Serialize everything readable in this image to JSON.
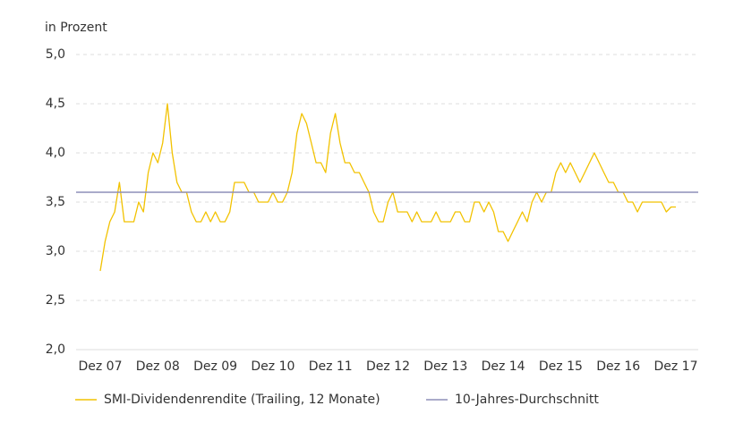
{
  "chart_data": {
    "type": "line",
    "y_axis_label": "in Prozent",
    "categories": [
      "Dez 07",
      null,
      null,
      null,
      null,
      null,
      null,
      null,
      null,
      null,
      null,
      null,
      "Dez 08",
      null,
      null,
      null,
      null,
      null,
      null,
      null,
      null,
      null,
      null,
      null,
      "Dez 09",
      null,
      null,
      null,
      null,
      null,
      null,
      null,
      null,
      null,
      null,
      null,
      "Dez 10",
      null,
      null,
      null,
      null,
      null,
      null,
      null,
      null,
      null,
      null,
      null,
      "Dez 11",
      null,
      null,
      null,
      null,
      null,
      null,
      null,
      null,
      null,
      null,
      null,
      "Dez 12",
      null,
      null,
      null,
      null,
      null,
      null,
      null,
      null,
      null,
      null,
      null,
      "Dez 13",
      null,
      null,
      null,
      null,
      null,
      null,
      null,
      null,
      null,
      null,
      null,
      "Dez 14",
      null,
      null,
      null,
      null,
      null,
      null,
      null,
      null,
      null,
      null,
      null,
      "Dez 15",
      null,
      null,
      null,
      null,
      null,
      null,
      null,
      null,
      null,
      null,
      null,
      "Dez 16",
      null,
      null,
      null,
      null,
      null,
      null,
      null,
      null,
      null,
      null,
      null,
      "Dez 17"
    ],
    "series": [
      {
        "name": "SMI-Dividendenrendite (Trailing, 12 Monate)",
        "color": "#f2c200",
        "values": [
          2.8,
          3.1,
          3.3,
          3.4,
          3.7,
          3.3,
          3.3,
          3.3,
          3.5,
          3.4,
          3.8,
          4.0,
          3.9,
          4.1,
          4.5,
          4.0,
          3.7,
          3.6,
          3.6,
          3.4,
          3.3,
          3.3,
          3.4,
          3.3,
          3.4,
          3.3,
          3.3,
          3.4,
          3.7,
          3.7,
          3.7,
          3.6,
          3.6,
          3.5,
          3.5,
          3.5,
          3.6,
          3.5,
          3.5,
          3.6,
          3.8,
          4.2,
          4.4,
          4.3,
          4.1,
          3.9,
          3.9,
          3.8,
          4.2,
          4.4,
          4.1,
          3.9,
          3.9,
          3.8,
          3.8,
          3.7,
          3.6,
          3.4,
          3.3,
          3.3,
          3.5,
          3.6,
          3.4,
          3.4,
          3.4,
          3.3,
          3.4,
          3.3,
          3.3,
          3.3,
          3.4,
          3.3,
          3.3,
          3.3,
          3.4,
          3.4,
          3.3,
          3.3,
          3.5,
          3.5,
          3.4,
          3.5,
          3.4,
          3.2,
          3.2,
          3.1,
          3.2,
          3.3,
          3.4,
          3.3,
          3.5,
          3.6,
          3.5,
          3.6,
          3.6,
          3.8,
          3.9,
          3.8,
          3.9,
          3.8,
          3.7,
          3.8,
          3.9,
          4.0,
          3.9,
          3.8,
          3.7,
          3.7,
          3.6,
          3.6,
          3.5,
          3.5,
          3.4,
          3.5,
          3.5,
          3.5,
          3.5,
          3.5,
          3.4,
          3.45,
          3.45
        ]
      }
    ],
    "average": {
      "name": "10-Jahres-Durchschnitt",
      "color": "#8e8fb8",
      "value": 3.6
    },
    "ylim": [
      2,
      5
    ],
    "yticks": [
      {
        "value": 2,
        "label": "2,0"
      },
      {
        "value": 2.5,
        "label": "2,5"
      },
      {
        "value": 3,
        "label": "3,0"
      },
      {
        "value": 3.5,
        "label": "3,5"
      },
      {
        "value": 4,
        "label": "4,0"
      },
      {
        "value": 4.5,
        "label": "4,5"
      },
      {
        "value": 5,
        "label": "5,0"
      }
    ],
    "grid": true
  }
}
